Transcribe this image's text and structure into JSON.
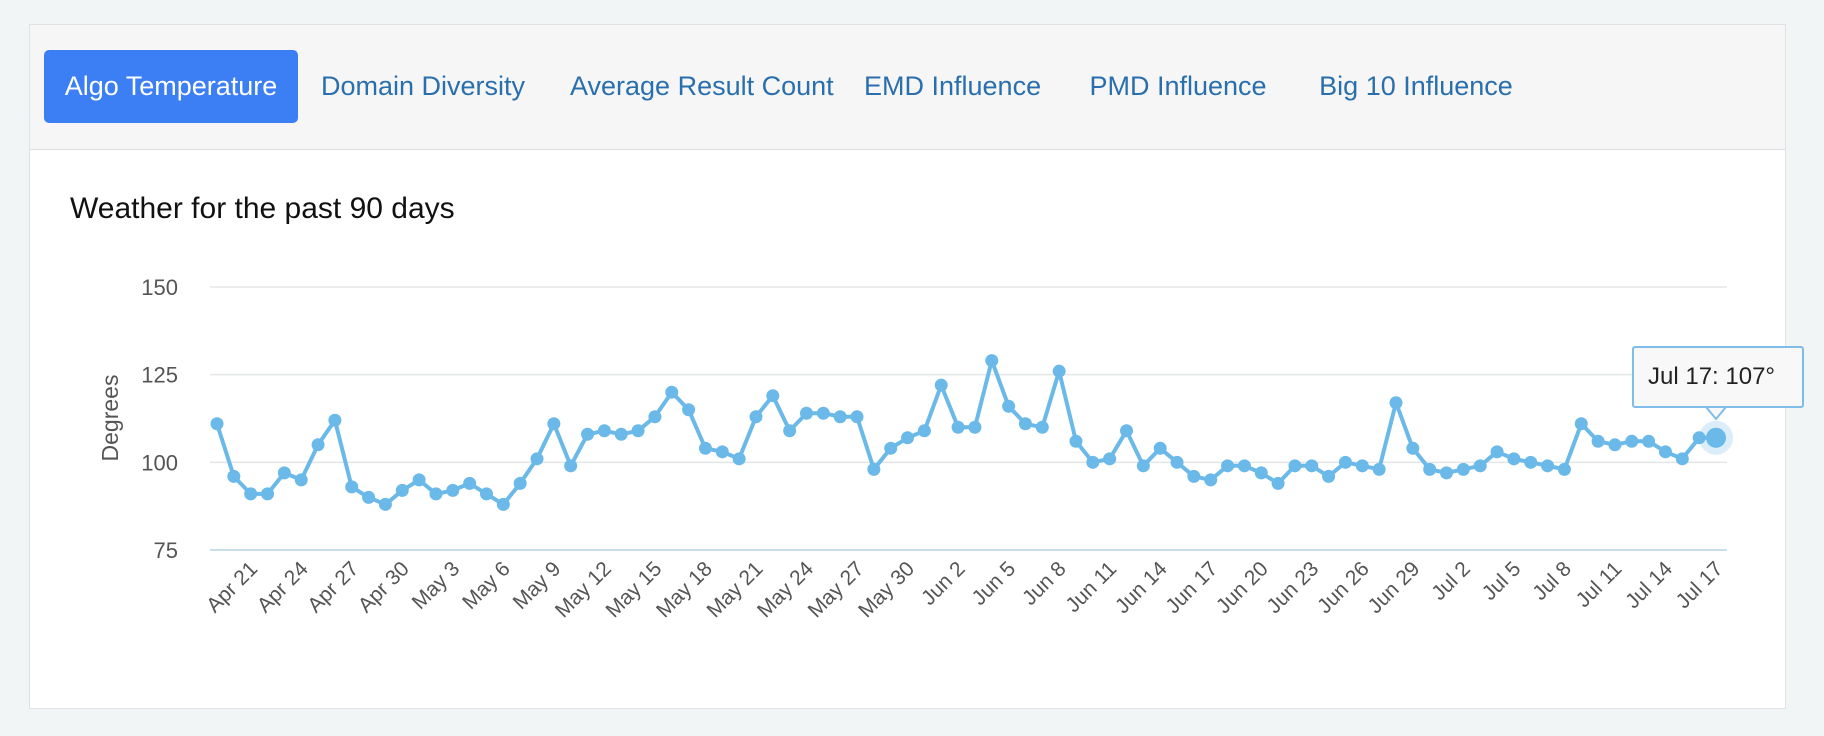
{
  "tabs": [
    {
      "label": "Algo Temperature",
      "active": true
    },
    {
      "label": "Domain Diversity",
      "active": false
    },
    {
      "label": "Average Result Count",
      "active": false
    },
    {
      "label": "EMD Influence",
      "active": false
    },
    {
      "label": "PMD Influence",
      "active": false
    },
    {
      "label": "Big 10 Influence",
      "active": false
    }
  ],
  "tooltip": {
    "label": "Jul 17",
    "value": 107,
    "unit": "°",
    "text": "Jul 17: 107°"
  },
  "colors": {
    "accent": "#3c7ef3",
    "series": "#6ab9e8",
    "link": "#2a6fad"
  },
  "chart_data": {
    "type": "line",
    "title": "Weather for the past 90 days",
    "xlabel": "",
    "ylabel": "Degrees",
    "ylim": [
      75,
      150
    ],
    "yticks": [
      75,
      100,
      125,
      150
    ],
    "grid": true,
    "x_tick_labels": [
      "Apr 21",
      "Apr 24",
      "Apr 27",
      "Apr 30",
      "May 3",
      "May 6",
      "May 9",
      "May 12",
      "May 15",
      "May 18",
      "May 21",
      "May 24",
      "May 27",
      "May 30",
      "Jun 2",
      "Jun 5",
      "Jun 8",
      "Jun 11",
      "Jun 14",
      "Jun 17",
      "Jun 20",
      "Jun 23",
      "Jun 26",
      "Jun 29",
      "Jul 2",
      "Jul 5",
      "Jul 8",
      "Jul 11",
      "Jul 14",
      "Jul 17"
    ],
    "series": [
      {
        "name": "Algo Temperature",
        "start_date": "Apr 19",
        "values": [
          111,
          96,
          91,
          91,
          97,
          95,
          105,
          112,
          93,
          90,
          88,
          92,
          95,
          91,
          92,
          94,
          91,
          88,
          94,
          101,
          111,
          99,
          108,
          109,
          108,
          109,
          113,
          120,
          115,
          104,
          103,
          101,
          113,
          119,
          109,
          114,
          114,
          113,
          113,
          98,
          104,
          107,
          109,
          122,
          110,
          110,
          129,
          116,
          111,
          110,
          126,
          106,
          100,
          101,
          109,
          99,
          104,
          100,
          96,
          95,
          99,
          99,
          97,
          94,
          99,
          99,
          96,
          100,
          99,
          98,
          117,
          104,
          98,
          97,
          98,
          99,
          103,
          101,
          100,
          99,
          98,
          111,
          106,
          105,
          106,
          106,
          103,
          101,
          107,
          107
        ]
      }
    ]
  }
}
